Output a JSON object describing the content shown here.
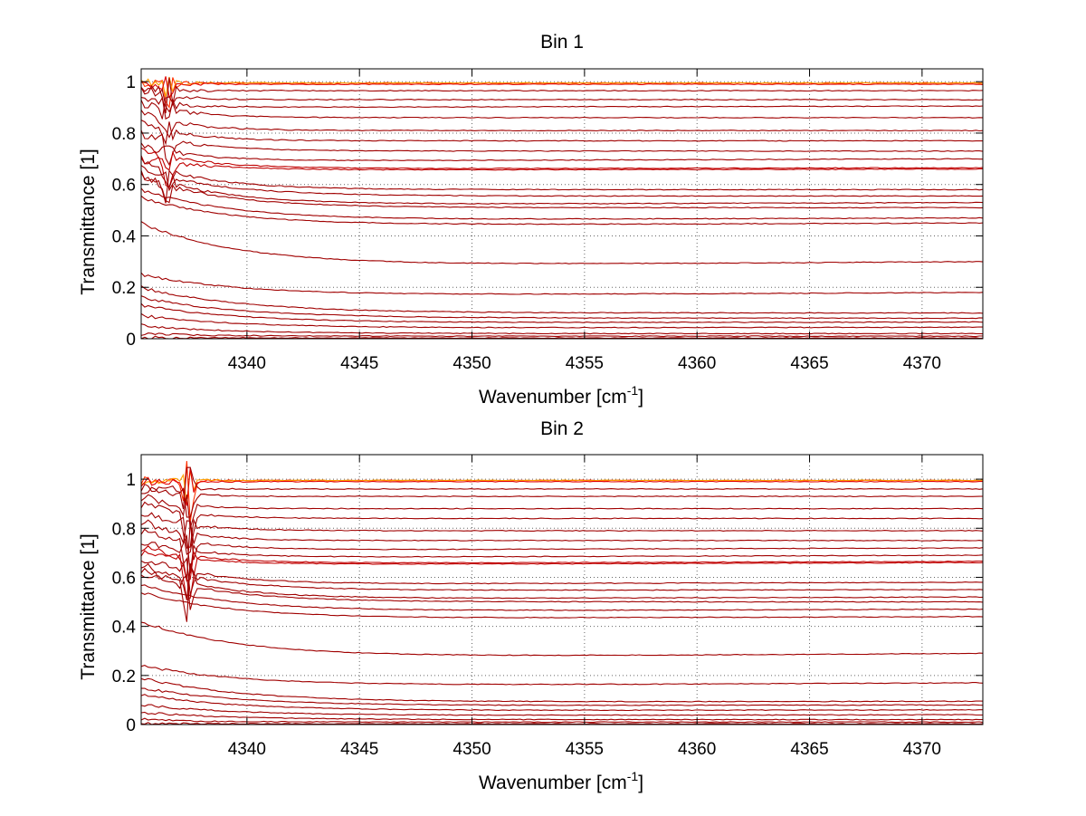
{
  "chart_data": [
    {
      "type": "line",
      "title": "Bin 1",
      "xlabel": "Wavenumber [cm",
      "xlabel_superscript": "-1",
      "xlabel_suffix": "]",
      "ylabel": "Transmittance [1]",
      "xlim": [
        4335.3,
        4372.7
      ],
      "ylim": [
        0,
        1.05
      ],
      "xticks": [
        4340,
        4345,
        4350,
        4355,
        4360,
        4365,
        4370
      ],
      "xtick_labels": [
        "4340",
        "4345",
        "4350",
        "4355",
        "4360",
        "4365",
        "4370"
      ],
      "yticks": [
        0,
        0.2,
        0.4,
        0.6,
        0.8,
        1
      ],
      "ytick_labels": [
        "0",
        "0.2",
        "0.4",
        "0.6",
        "0.8",
        "1"
      ],
      "grid": "dotted",
      "spike": {
        "x": 4336.5,
        "height": 0.1
      },
      "series": [
        {
          "start": 1.0,
          "baseline": 0.995,
          "end": 0.995,
          "tau": 0.5,
          "color": "#ff3000"
        },
        {
          "start": 1.0,
          "baseline": 0.995,
          "end": 0.995,
          "tau": 0.5,
          "color": "#ffa000"
        },
        {
          "start": 0.99,
          "baseline": 0.99,
          "end": 0.99,
          "tau": 0.5,
          "color": "#e00000"
        },
        {
          "start": 0.97,
          "baseline": 0.965,
          "end": 0.965,
          "tau": 1.0,
          "color": "#a00000"
        },
        {
          "start": 0.97,
          "baseline": 0.93,
          "end": 0.93,
          "tau": 1.5,
          "color": "#a00000"
        },
        {
          "start": 0.93,
          "baseline": 0.9,
          "end": 0.905,
          "tau": 1.5,
          "color": "#a00000"
        },
        {
          "start": 0.92,
          "baseline": 0.86,
          "end": 0.86,
          "tau": 2.0,
          "color": "#a00000"
        },
        {
          "start": 0.88,
          "baseline": 0.81,
          "end": 0.81,
          "tau": 2.0,
          "color": "#a00000"
        },
        {
          "start": 0.84,
          "baseline": 0.77,
          "end": 0.77,
          "tau": 2.0,
          "color": "#a00000"
        },
        {
          "start": 0.8,
          "baseline": 0.73,
          "end": 0.73,
          "tau": 2.5,
          "color": "#a00000"
        },
        {
          "start": 0.75,
          "baseline": 0.69,
          "end": 0.7,
          "tau": 2.5,
          "color": "#a00000"
        },
        {
          "start": 0.73,
          "baseline": 0.66,
          "end": 0.665,
          "tau": 3.0,
          "color": "#c00000"
        },
        {
          "start": 0.7,
          "baseline": 0.655,
          "end": 0.66,
          "tau": 3.0,
          "color": "#c00000"
        },
        {
          "start": 0.69,
          "baseline": 0.58,
          "end": 0.58,
          "tau": 3.0,
          "color": "#a00000"
        },
        {
          "start": 0.66,
          "baseline": 0.555,
          "end": 0.555,
          "tau": 3.5,
          "color": "#a00000"
        },
        {
          "start": 0.64,
          "baseline": 0.52,
          "end": 0.53,
          "tau": 3.5,
          "color": "#a00000"
        },
        {
          "start": 0.63,
          "baseline": 0.51,
          "end": 0.51,
          "tau": 3.5,
          "color": "#a00000"
        },
        {
          "start": 0.58,
          "baseline": 0.46,
          "end": 0.47,
          "tau": 4.0,
          "color": "#a00000"
        },
        {
          "start": 0.55,
          "baseline": 0.44,
          "end": 0.45,
          "tau": 4.0,
          "color": "#a00000"
        },
        {
          "start": 0.45,
          "baseline": 0.28,
          "end": 0.3,
          "tau": 4.5,
          "color": "#a00000"
        },
        {
          "start": 0.25,
          "baseline": 0.165,
          "end": 0.18,
          "tau": 4.5,
          "color": "#a00000"
        },
        {
          "start": 0.2,
          "baseline": 0.1,
          "end": 0.1,
          "tau": 4.5,
          "color": "#a00000"
        },
        {
          "start": 0.16,
          "baseline": 0.08,
          "end": 0.08,
          "tau": 4.5,
          "color": "#a00000"
        },
        {
          "start": 0.13,
          "baseline": 0.06,
          "end": 0.065,
          "tau": 4.5,
          "color": "#a00000"
        },
        {
          "start": 0.09,
          "baseline": 0.04,
          "end": 0.045,
          "tau": 4.5,
          "color": "#a00000"
        },
        {
          "start": 0.05,
          "baseline": 0.02,
          "end": 0.02,
          "tau": 4.0,
          "color": "#a00000"
        },
        {
          "start": 0.02,
          "baseline": 0.01,
          "end": 0.01,
          "tau": 3.0,
          "color": "#a00000"
        },
        {
          "start": 0.005,
          "baseline": 0.003,
          "end": 0.003,
          "tau": 2.0,
          "color": "#a00000"
        }
      ]
    },
    {
      "type": "line",
      "title": "Bin 2",
      "xlabel": "Wavenumber [cm",
      "xlabel_superscript": "-1",
      "xlabel_suffix": "]",
      "ylabel": "Transmittance [1]",
      "xlim": [
        4335.3,
        4372.7
      ],
      "ylim": [
        0,
        1.1
      ],
      "xticks": [
        4340,
        4345,
        4350,
        4355,
        4360,
        4365,
        4370
      ],
      "xtick_labels": [
        "4340",
        "4345",
        "4350",
        "4355",
        "4360",
        "4365",
        "4370"
      ],
      "yticks": [
        0,
        0.2,
        0.4,
        0.6,
        0.8,
        1
      ],
      "ytick_labels": [
        "0",
        "0.2",
        "0.4",
        "0.6",
        "0.8",
        "1"
      ],
      "grid": "dotted",
      "spike": {
        "x": 4337.4,
        "height": 0.18
      },
      "series": [
        {
          "start": 1.0,
          "baseline": 0.995,
          "end": 0.995,
          "tau": 0.5,
          "color": "#ff3000"
        },
        {
          "start": 1.0,
          "baseline": 0.995,
          "end": 0.995,
          "tau": 0.5,
          "color": "#ffa000"
        },
        {
          "start": 0.99,
          "baseline": 0.99,
          "end": 0.99,
          "tau": 0.5,
          "color": "#e00000"
        },
        {
          "start": 0.97,
          "baseline": 0.96,
          "end": 0.96,
          "tau": 1.0,
          "color": "#a00000"
        },
        {
          "start": 0.96,
          "baseline": 0.93,
          "end": 0.93,
          "tau": 1.5,
          "color": "#a00000"
        },
        {
          "start": 0.93,
          "baseline": 0.88,
          "end": 0.88,
          "tau": 1.5,
          "color": "#a00000"
        },
        {
          "start": 0.9,
          "baseline": 0.84,
          "end": 0.84,
          "tau": 2.0,
          "color": "#a00000"
        },
        {
          "start": 0.87,
          "baseline": 0.79,
          "end": 0.79,
          "tau": 2.0,
          "color": "#a00000"
        },
        {
          "start": 0.83,
          "baseline": 0.75,
          "end": 0.75,
          "tau": 2.0,
          "color": "#a00000"
        },
        {
          "start": 0.79,
          "baseline": 0.71,
          "end": 0.72,
          "tau": 2.5,
          "color": "#a00000"
        },
        {
          "start": 0.75,
          "baseline": 0.68,
          "end": 0.69,
          "tau": 2.5,
          "color": "#a00000"
        },
        {
          "start": 0.72,
          "baseline": 0.655,
          "end": 0.665,
          "tau": 3.0,
          "color": "#c00000"
        },
        {
          "start": 0.7,
          "baseline": 0.65,
          "end": 0.66,
          "tau": 3.0,
          "color": "#c00000"
        },
        {
          "start": 0.68,
          "baseline": 0.57,
          "end": 0.58,
          "tau": 3.0,
          "color": "#a00000"
        },
        {
          "start": 0.65,
          "baseline": 0.545,
          "end": 0.55,
          "tau": 3.5,
          "color": "#a00000"
        },
        {
          "start": 0.63,
          "baseline": 0.51,
          "end": 0.52,
          "tau": 3.5,
          "color": "#a00000"
        },
        {
          "start": 0.62,
          "baseline": 0.5,
          "end": 0.5,
          "tau": 3.5,
          "color": "#a00000"
        },
        {
          "start": 0.57,
          "baseline": 0.46,
          "end": 0.47,
          "tau": 4.0,
          "color": "#a00000"
        },
        {
          "start": 0.54,
          "baseline": 0.43,
          "end": 0.44,
          "tau": 4.0,
          "color": "#a00000"
        },
        {
          "start": 0.42,
          "baseline": 0.27,
          "end": 0.29,
          "tau": 4.5,
          "color": "#a00000"
        },
        {
          "start": 0.24,
          "baseline": 0.155,
          "end": 0.17,
          "tau": 4.5,
          "color": "#a00000"
        },
        {
          "start": 0.19,
          "baseline": 0.09,
          "end": 0.095,
          "tau": 4.5,
          "color": "#a00000"
        },
        {
          "start": 0.15,
          "baseline": 0.075,
          "end": 0.08,
          "tau": 4.5,
          "color": "#a00000"
        },
        {
          "start": 0.12,
          "baseline": 0.055,
          "end": 0.06,
          "tau": 4.5,
          "color": "#a00000"
        },
        {
          "start": 0.08,
          "baseline": 0.035,
          "end": 0.04,
          "tau": 4.5,
          "color": "#a00000"
        },
        {
          "start": 0.05,
          "baseline": 0.02,
          "end": 0.02,
          "tau": 4.0,
          "color": "#a00000"
        },
        {
          "start": 0.02,
          "baseline": 0.01,
          "end": 0.01,
          "tau": 3.0,
          "color": "#a00000"
        },
        {
          "start": 0.005,
          "baseline": 0.003,
          "end": 0.003,
          "tau": 2.0,
          "color": "#a00000"
        }
      ]
    }
  ]
}
